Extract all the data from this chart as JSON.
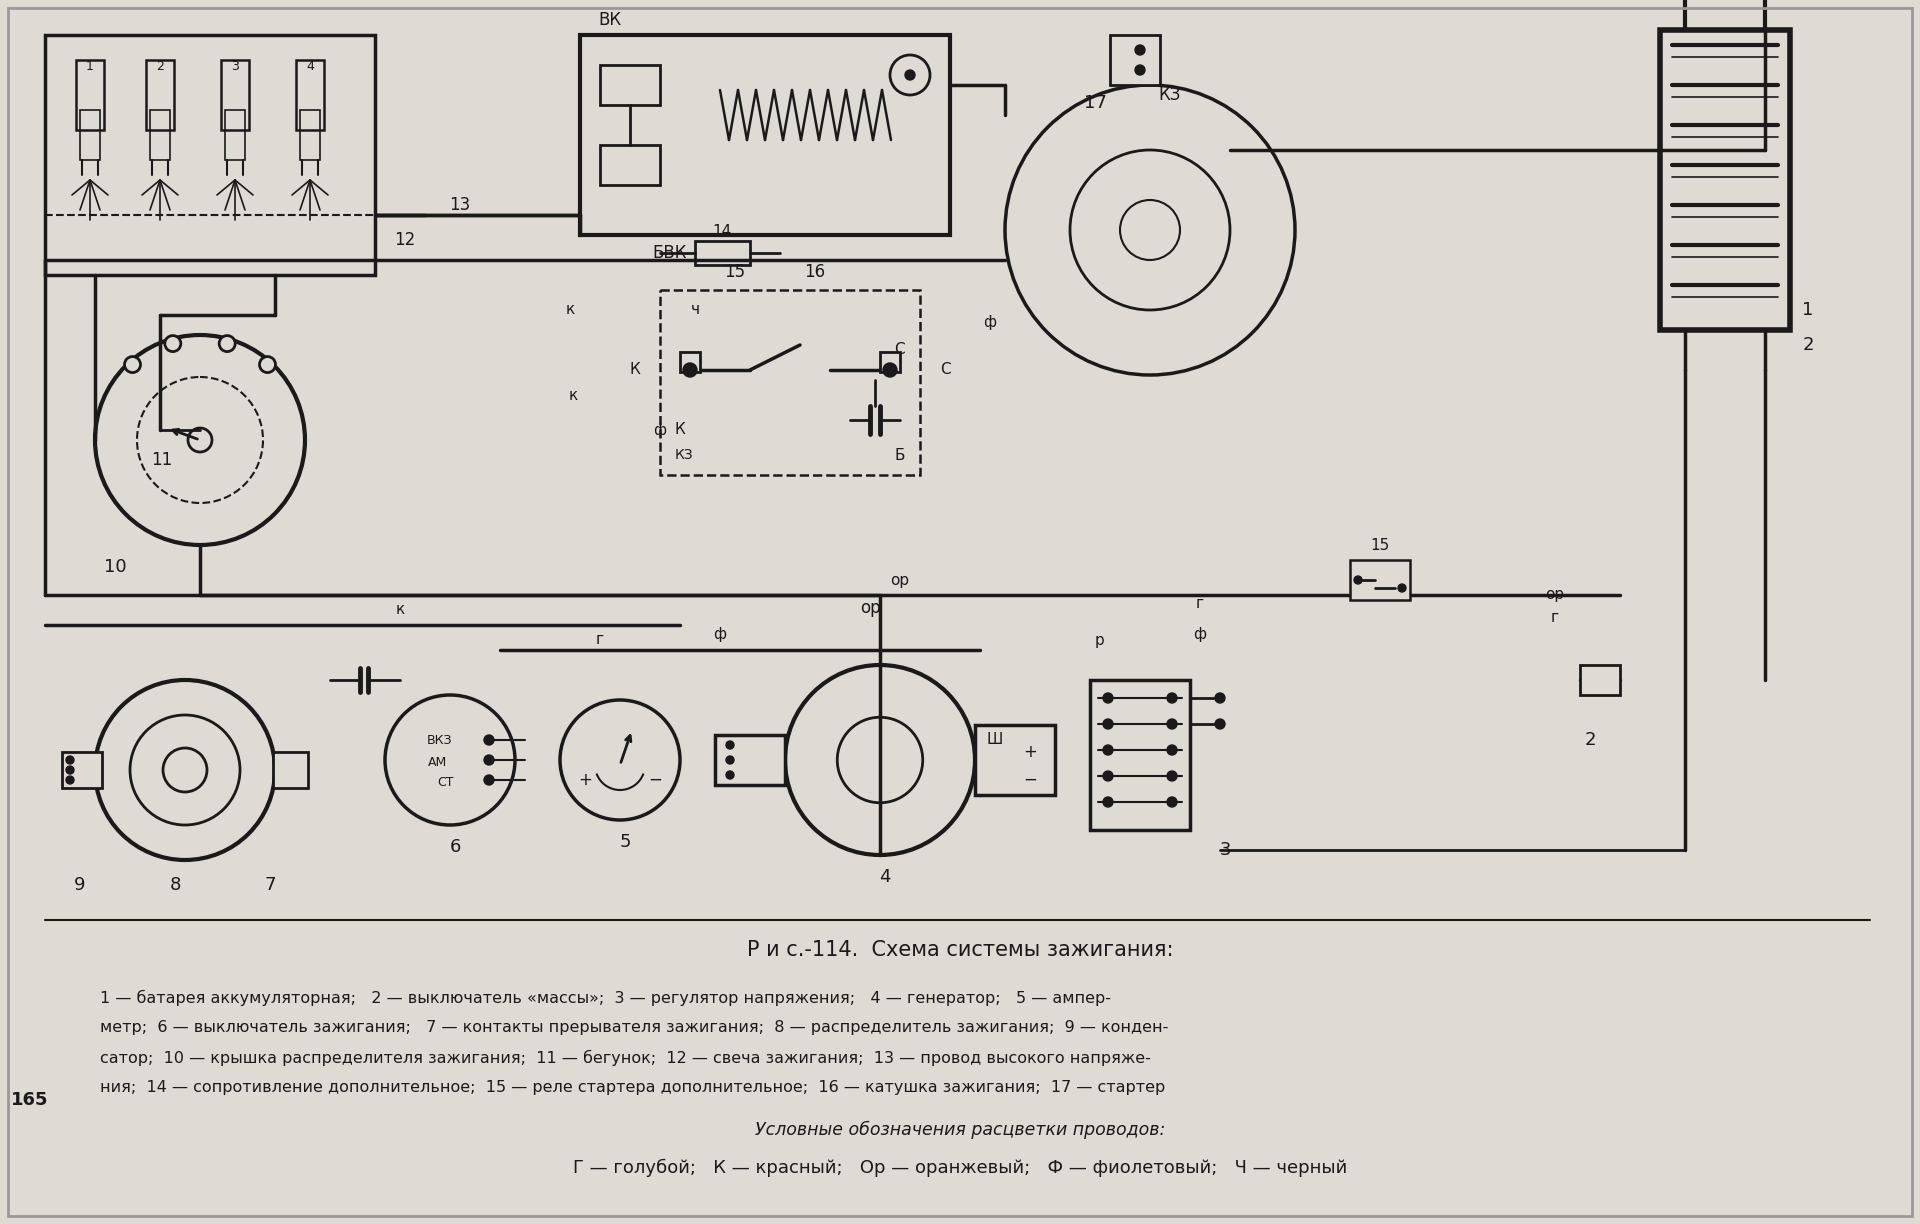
{
  "background_color": "#c8c3bc",
  "paper_color": "#dedad4",
  "ink_color": "#1a1a1a",
  "title": "Р и с.-114.  Схема системы зажигания:",
  "caption_line1": "1 — батарея аккумуляторная;   2 — выключатель «массы»;  3 — регулятор напряжения;   4 — генератор;   5 — ампер-",
  "caption_line2": "метр;  6 — выключатель зажигания;   7 — контакты прерывателя зажигания;  8 — распределитель зажигания;  9 — конден-",
  "caption_line3": "сатор;  10 — крышка распределителя зажигания;  11 — бегунок;  12 — свеча зажигания;  13 — провод высокого напряже-",
  "caption_line4": "ния;  14 — сопротивление дополнительное;  15 — реле стартера дополнительное;  16 — катушка зажигания;  17 — стартер",
  "legend_title": "Условные обозначения расцветки проводов:",
  "legend_line": "Г — голубой;   К — красный;   Ор — оранжевый;   Ф — фиолетовый;   Ч — черный",
  "page_number": "165",
  "fig_width": 19.2,
  "fig_height": 12.24,
  "dpi": 100
}
